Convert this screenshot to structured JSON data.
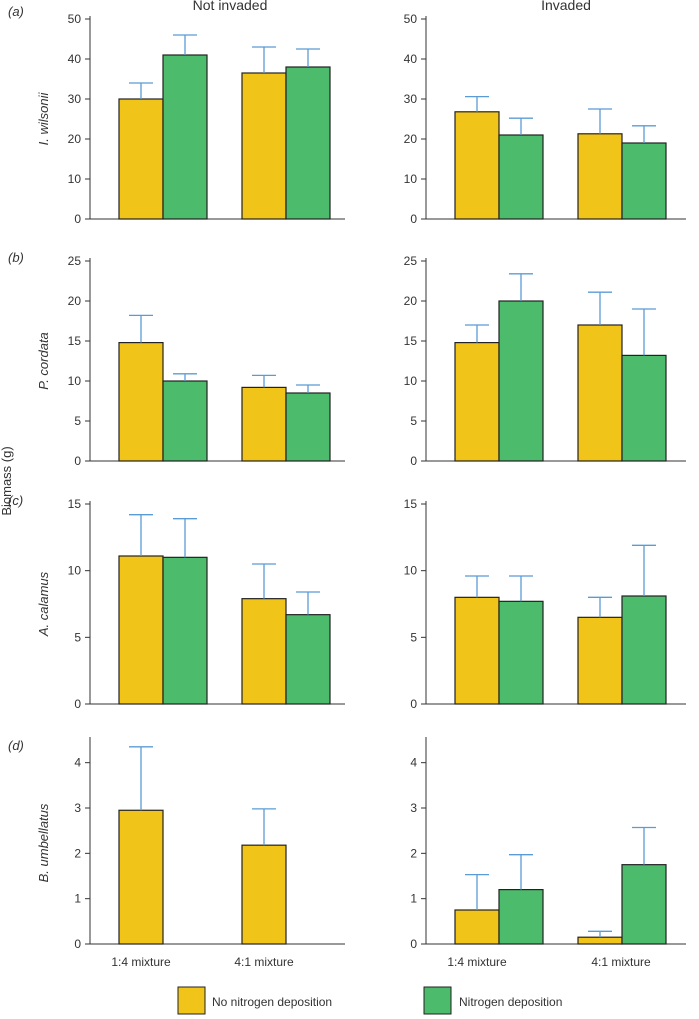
{
  "column_titles": [
    "Not invaded",
    "Invaded"
  ],
  "ylabel": "Biomass (g)",
  "panel_letters": [
    "(a)",
    "(b)",
    "(c)",
    "(d)"
  ],
  "categories": [
    "1:4 mixture",
    "4:1 mixture"
  ],
  "legend": [
    {
      "name": "No nitrogen deposition",
      "color": "#F0C419"
    },
    {
      "name": "Nitrogen deposition",
      "color": "#4CBB6C"
    }
  ],
  "error_bar_color": "#5B9BD5",
  "chart_data": [
    {
      "type": "bar",
      "species": "I. wilsonii",
      "condition": "Not invaded",
      "ylim": [
        0,
        50
      ],
      "yticks": [
        0,
        10,
        20,
        30,
        40,
        50
      ],
      "categories": [
        "1:4 mixture",
        "4:1 mixture"
      ],
      "series": [
        {
          "name": "No nitrogen deposition",
          "values": [
            30,
            36.5
          ],
          "errors": [
            4,
            6.5
          ]
        },
        {
          "name": "Nitrogen deposition",
          "values": [
            41,
            38
          ],
          "errors": [
            5,
            4.5
          ]
        }
      ]
    },
    {
      "type": "bar",
      "species": "I. wilsonii",
      "condition": "Invaded",
      "ylim": [
        0,
        50
      ],
      "yticks": [
        0,
        10,
        20,
        30,
        40,
        50
      ],
      "categories": [
        "1:4 mixture",
        "4:1 mixture"
      ],
      "series": [
        {
          "name": "No nitrogen deposition",
          "values": [
            26.8,
            21.3
          ],
          "errors": [
            3.8,
            6.2
          ]
        },
        {
          "name": "Nitrogen deposition",
          "values": [
            21,
            19
          ],
          "errors": [
            4.2,
            4.3
          ]
        }
      ]
    },
    {
      "type": "bar",
      "species": "P. cordata",
      "condition": "Not invaded",
      "ylim": [
        0,
        25
      ],
      "yticks": [
        0,
        5,
        10,
        15,
        20,
        25
      ],
      "categories": [
        "1:4 mixture",
        "4:1 mixture"
      ],
      "series": [
        {
          "name": "No nitrogen deposition",
          "values": [
            14.8,
            9.2
          ],
          "errors": [
            3.4,
            1.5
          ]
        },
        {
          "name": "Nitrogen deposition",
          "values": [
            10,
            8.5
          ],
          "errors": [
            0.9,
            1
          ]
        }
      ]
    },
    {
      "type": "bar",
      "species": "P. cordata",
      "condition": "Invaded",
      "ylim": [
        0,
        25
      ],
      "yticks": [
        0,
        5,
        10,
        15,
        20,
        25
      ],
      "categories": [
        "1:4 mixture",
        "4:1 mixture"
      ],
      "series": [
        {
          "name": "No nitrogen deposition",
          "values": [
            14.8,
            17
          ],
          "errors": [
            2.2,
            4.1
          ]
        },
        {
          "name": "Nitrogen deposition",
          "values": [
            20,
            13.2
          ],
          "errors": [
            3.4,
            5.8
          ]
        }
      ]
    },
    {
      "type": "bar",
      "species": "A. calamus",
      "condition": "Not invaded",
      "ylim": [
        0,
        15
      ],
      "yticks": [
        0,
        5,
        10,
        15
      ],
      "categories": [
        "1:4 mixture",
        "4:1 mixture"
      ],
      "series": [
        {
          "name": "No nitrogen deposition",
          "values": [
            11.1,
            7.9
          ],
          "errors": [
            3.1,
            2.6
          ]
        },
        {
          "name": "Nitrogen deposition",
          "values": [
            11,
            6.7
          ],
          "errors": [
            2.9,
            1.7
          ]
        }
      ]
    },
    {
      "type": "bar",
      "species": "A. calamus",
      "condition": "Invaded",
      "ylim": [
        0,
        15
      ],
      "yticks": [
        0,
        5,
        10,
        15
      ],
      "categories": [
        "1:4 mixture",
        "4:1 mixture"
      ],
      "series": [
        {
          "name": "No nitrogen deposition",
          "values": [
            8,
            6.5
          ],
          "errors": [
            1.6,
            1.5
          ]
        },
        {
          "name": "Nitrogen deposition",
          "values": [
            7.7,
            8.1
          ],
          "errors": [
            1.9,
            3.8
          ]
        }
      ]
    },
    {
      "type": "bar",
      "species": "B. umbellatus",
      "condition": "Not invaded",
      "ylim": [
        0,
        4.5
      ],
      "yticks": [
        0,
        1,
        2,
        3,
        4
      ],
      "categories": [
        "1:4 mixture",
        "4:1 mixture"
      ],
      "series": [
        {
          "name": "No nitrogen deposition",
          "values": [
            2.95,
            2.18
          ],
          "errors": [
            1.4,
            0.8
          ]
        },
        {
          "name": "Nitrogen deposition",
          "values": [
            null,
            null
          ],
          "errors": [
            null,
            null
          ]
        }
      ]
    },
    {
      "type": "bar",
      "species": "B. umbellatus",
      "condition": "Invaded",
      "ylim": [
        0,
        4.5
      ],
      "yticks": [
        0,
        1,
        2,
        3,
        4
      ],
      "categories": [
        "1:4 mixture",
        "4:1 mixture"
      ],
      "series": [
        {
          "name": "No nitrogen deposition",
          "values": [
            0.75,
            0.15
          ],
          "errors": [
            0.78,
            0.13
          ]
        },
        {
          "name": "Nitrogen deposition",
          "values": [
            1.2,
            1.75
          ],
          "errors": [
            0.77,
            0.82
          ]
        }
      ]
    }
  ]
}
